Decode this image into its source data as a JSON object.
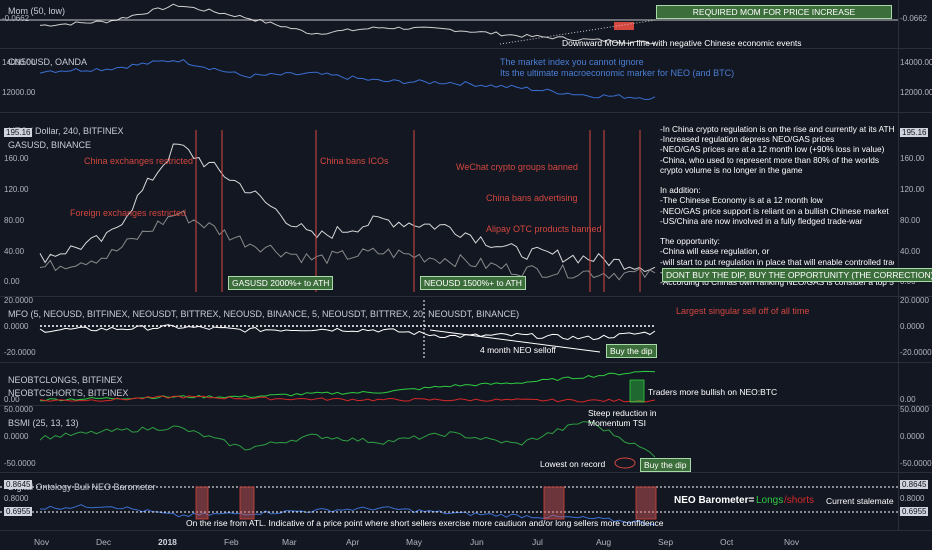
{
  "panels": {
    "mom": {
      "label": "Mom (50, low)",
      "tick_left": "-0.0662",
      "tick_right": "-0.0662"
    },
    "cn50": {
      "label": "CN50USD, OANDA",
      "ticks": [
        "14000.00",
        "12000.00"
      ]
    },
    "neo": {
      "label": "NEO / Dollar, 240, BITFINEX",
      "label2": "GASUSD, BINANCE",
      "price_tag": "195.16",
      "ticks": [
        "160.00",
        "120.00",
        "80.00",
        "40.00",
        "0.00"
      ]
    },
    "mfo": {
      "label": "MFO (5, NEOUSD, BITFINEX, NEOUSDT, BITTREX, NEOUSD, BINANCE, 5, NEOUSDT, BITTREX, 20, NEOUSDT, BINANCE)",
      "ticks": [
        "20.0000",
        "0.0000",
        "-20.0000"
      ]
    },
    "shorts": {
      "label": "NEOBTCLONGS, BITFINEX",
      "label2": "NEOBTCSHORTS, BITFINEX",
      "ticks": [
        "0.00"
      ]
    },
    "bsmi": {
      "label": "BSMI (25, 13, 13)",
      "ticks": [
        "50.0000",
        "0.0000",
        "-50.0000"
      ]
    },
    "baro": {
      "label": "Digital Ontology Bull NEO Barometer",
      "ticks": [
        "0.8645",
        "0.8000",
        "0.6955"
      ]
    }
  },
  "annotations": {
    "required_mom": "REQUIRED MOM FOR PRICE INCREASE",
    "downward_mom": "Downward MOM in line with negative Chinese economic events",
    "market_index_1": "The market index you cannot ignore",
    "market_index_2": "Its the ultimate macroeconomic marker for NEO (and BTC)",
    "china_exchanges": "China exchanges restricted",
    "china_bans_icos": "China bans ICOs",
    "wechat": "WeChat crypto groups banned",
    "foreign_exchanges": "Foreign exchanges restricted",
    "china_bans_adv": "China bans advertising",
    "alipay": "Alipay OTC products banned",
    "gas_ath": "GASUSD 2000%+ to ATH",
    "neo_ath": "NEOUSD 1500%+ to ATH",
    "dont_buy": "DONT BUY THE DIP,  BUY THE OPPORTUNITY (THE CORRECTION)",
    "largest_selloff": "Largest singular sell off of all time",
    "four_month": "4 month NEO selloff",
    "buy_dip_1": "Buy the dip",
    "traders_bullish": "Traders more bullish on NEO:BTC",
    "steep_1": "Steep reduction in",
    "steep_2": "Momentum TSI",
    "lowest_record": "Lowest on record",
    "buy_dip_2": "Buy the dip",
    "neo_barometer": "NEO Barometer=",
    "longs": "Longs",
    "slash_shorts": "/shorts",
    "stalemate": "Current stalemate",
    "rise_from_atl": "On the rise from ATL. Indicative of a price point where short sellers exercise more cautiuon and/or long sellers more confidence"
  },
  "neo_notes": [
    "-In China crypto regulation is on the rise and currently at its ATH",
    "-Increased regulation depress NEO/GAS prices",
    "-NEO/GAS prices are at a 12 month low (+90% loss in value)",
    "-China, who used to represent more than 80% of the worlds",
    "crypto volume is no longer in the game",
    "",
    "In addition:",
    "-The Chinese Economy is at a 12 month low",
    "-NEO/GAS price support is reliant on a bullish Chinese market",
    "-US/China are now involved in a fully fledged trade-war",
    "",
    "The opportunity:",
    "-China will ease regulation, or",
    "-will start to put regulation in place that will enable controlled trading",
    "-The Chinese stock market will recover",
    "-According to Chinas own ranking NEO/GAS is consider a top 5 world"
  ],
  "x_axis": [
    "Nov",
    "Dec",
    "2018",
    "Feb",
    "Mar",
    "Apr",
    "May",
    "Jun",
    "Jul",
    "Aug",
    "Sep",
    "Oct",
    "Nov"
  ],
  "colors": {
    "background": "#131722",
    "neo_price": "#d9d9d9",
    "gas_price": "#8a8a8a",
    "cn50": "#3b6fd1",
    "annotation_red": "#d4473f",
    "longs": "#2ecc40",
    "shorts": "#d62828",
    "mfo_line": "#ffffff",
    "bsmi_green": "#2ea043",
    "bsmi_red": "#c0392b",
    "barometer": "#3b6fd1"
  },
  "chart_data": [
    {
      "type": "line",
      "title": "Mom (50, low)",
      "x": [
        "Nov",
        "Dec",
        "2018",
        "Feb",
        "Mar",
        "Apr",
        "May",
        "Jun",
        "Jul",
        "Aug"
      ],
      "series": [
        {
          "name": "Mom (50, low)",
          "values": [
            0.02,
            0.04,
            0.12,
            0.06,
            -0.02,
            0.01,
            0.0,
            -0.03,
            -0.05,
            -0.0662
          ]
        }
      ]
    },
    {
      "type": "line",
      "title": "CN50USD, OANDA",
      "x": [
        "Nov",
        "Dec",
        "2018",
        "Feb",
        "Mar",
        "Apr",
        "May",
        "Jun",
        "Jul",
        "Aug"
      ],
      "series": [
        {
          "name": "CN50USD, OANDA",
          "values": [
            13600,
            13800,
            14500,
            13200,
            13400,
            12800,
            12700,
            12300,
            11700,
            11500
          ]
        }
      ],
      "ylim": [
        11000,
        14800
      ]
    },
    {
      "type": "line",
      "title": "NEO / Dollar, 240, BITFINEX",
      "x": [
        "Nov",
        "Dec",
        "2018",
        "Feb",
        "Mar",
        "Apr",
        "May",
        "Jun",
        "Jul",
        "Aug"
      ],
      "series": [
        {
          "name": "NEO / Dollar, 240, BITFINEX",
          "values": [
            32,
            60,
            190,
            130,
            60,
            85,
            75,
            40,
            32,
            19
          ]
        },
        {
          "name": "GASUSD, BINANCE",
          "values": [
            18,
            35,
            95,
            55,
            30,
            40,
            30,
            15,
            12,
            8
          ]
        }
      ],
      "ylim": [
        0,
        195
      ]
    },
    {
      "type": "line",
      "title": "MFO",
      "x": [
        "Nov",
        "Dec",
        "2018",
        "Feb",
        "Mar",
        "Apr",
        "May",
        "Jun",
        "Jul",
        "Aug"
      ],
      "series": [
        {
          "name": "MFO",
          "values": [
            0,
            1,
            3,
            0,
            1,
            0,
            -6,
            -5,
            -8,
            -2
          ]
        }
      ],
      "ylim": [
        -25,
        25
      ]
    },
    {
      "type": "line",
      "title": "NEOBTCLONGS / NEOBTCSHORTS",
      "x": [
        "Nov",
        "Dec",
        "2018",
        "Feb",
        "Mar",
        "Apr",
        "May",
        "Jun",
        "Jul",
        "Aug"
      ],
      "series": [
        {
          "name": "NEOBTCLONGS, BITFINEX",
          "values": [
            0.1,
            0.2,
            0.3,
            0.3,
            0.5,
            0.6,
            1.0,
            1.2,
            1.6,
            2.0
          ]
        },
        {
          "name": "NEOBTCSHORTS, BITFINEX",
          "values": [
            0.05,
            0.1,
            0.3,
            0.2,
            0.15,
            0.1,
            0.1,
            0.08,
            0.05,
            0.05
          ]
        }
      ]
    },
    {
      "type": "line",
      "title": "BSMI (25, 13, 13)",
      "x": [
        "Nov",
        "Dec",
        "2018",
        "Feb",
        "Mar",
        "Apr",
        "May",
        "Jun",
        "Jul",
        "Aug"
      ],
      "series": [
        {
          "name": "BSMI",
          "values": [
            5,
            20,
            30,
            -20,
            10,
            -5,
            15,
            -10,
            45,
            -35
          ]
        }
      ],
      "ylim": [
        -60,
        60
      ]
    },
    {
      "type": "line",
      "title": "Digital Ontology Bull NEO Barometer",
      "x": [
        "Nov",
        "Dec",
        "2018",
        "Feb",
        "Mar",
        "Apr",
        "May",
        "Jun",
        "Jul",
        "Aug"
      ],
      "series": [
        {
          "name": "Barometer",
          "values": [
            0.76,
            0.77,
            0.73,
            0.74,
            0.75,
            0.76,
            0.74,
            0.73,
            0.72,
            0.7
          ]
        }
      ],
      "ylim": [
        0.6955,
        0.8645
      ]
    }
  ]
}
